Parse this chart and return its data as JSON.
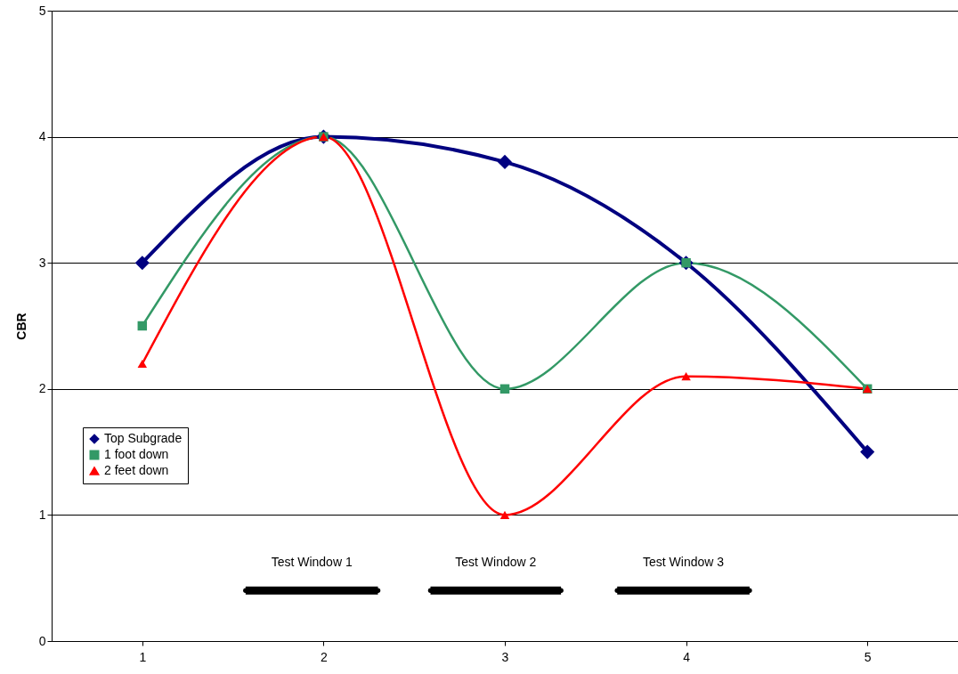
{
  "chart_data": {
    "type": "line",
    "ylabel": "CBR",
    "x": [
      1,
      2,
      3,
      4,
      5
    ],
    "xlim": [
      0.5,
      5.5
    ],
    "xticks": [
      1,
      2,
      3,
      4,
      5
    ],
    "ylim": [
      0,
      5
    ],
    "yticks": [
      0,
      1,
      2,
      3,
      4,
      5
    ],
    "grid": "y",
    "legend": "left",
    "series": [
      {
        "name": "Top Subgrade",
        "color": "#000080",
        "marker": "diamond",
        "values": [
          3,
          4,
          3.8,
          3,
          1.5
        ]
      },
      {
        "name": "1 foot down",
        "color": "#339966",
        "marker": "square",
        "values": [
          2.5,
          4,
          2,
          3,
          2
        ]
      },
      {
        "name": "2 feet down",
        "color": "#ff0000",
        "marker": "triangle",
        "values": [
          2.2,
          4,
          1,
          2.1,
          2
        ]
      },
      {
        "name": "Test Window 1",
        "color": "#000000",
        "marker": "none",
        "x": [
          1.57,
          2.3
        ],
        "values": [
          0.4,
          0.4
        ]
      },
      {
        "name": "Test Window 2",
        "color": "#000000",
        "marker": "none",
        "x": [
          2.59,
          3.31
        ],
        "values": [
          0.4,
          0.4
        ]
      },
      {
        "name": "Test Window 3",
        "color": "#000000",
        "marker": "none",
        "x": [
          3.62,
          4.35
        ],
        "values": [
          0.4,
          0.4
        ]
      }
    ]
  }
}
